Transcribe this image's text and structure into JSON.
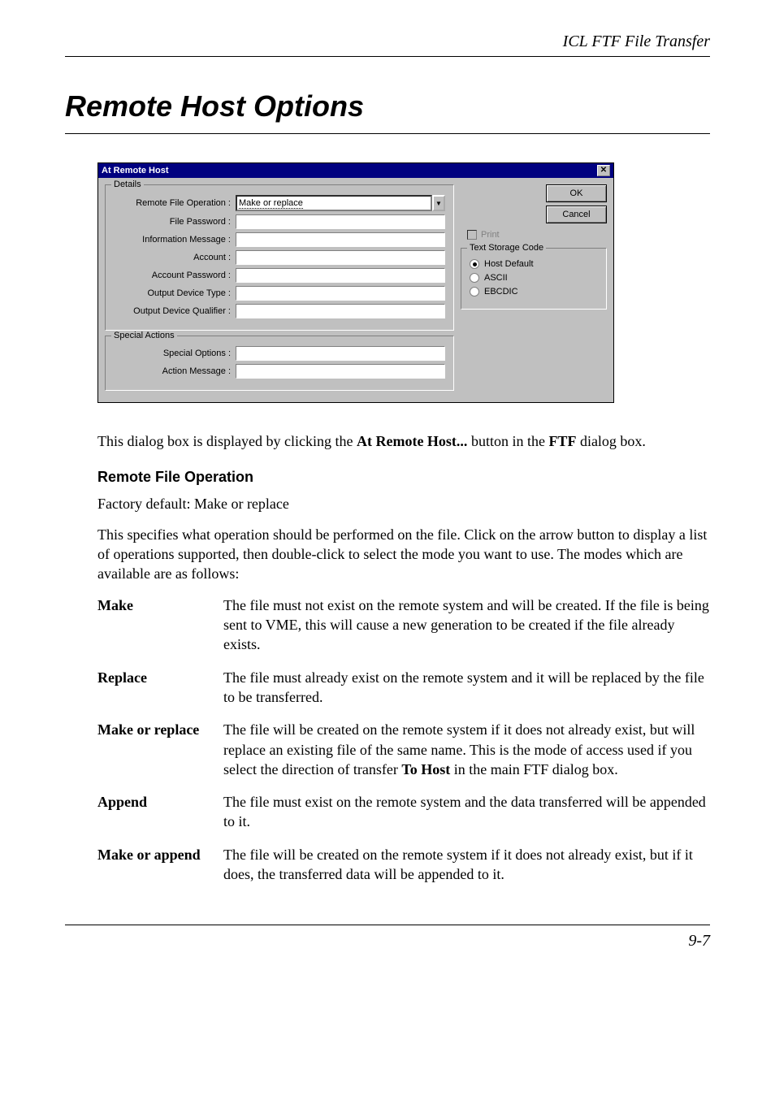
{
  "header": {
    "breadcrumb": "ICL FTF File Transfer"
  },
  "title": "Remote Host Options",
  "dialog": {
    "title": "At Remote Host",
    "details_legend": "Details",
    "special_legend": "Special Actions",
    "storage_legend": "Text Storage Code",
    "labels": {
      "remote_file_op": "Remote File Operation :",
      "file_password": "File Password :",
      "info_message": "Information Message :",
      "account": "Account :",
      "account_password": "Account Password :",
      "output_device_type": "Output Device Type :",
      "output_device_qualifier": "Output Device Qualifier :",
      "special_options": "Special Options :",
      "action_message": "Action Message :"
    },
    "combo_value": "Make or replace",
    "buttons": {
      "ok": "OK",
      "cancel": "Cancel"
    },
    "print_label": "Print",
    "radios": {
      "host_default": "Host Default",
      "ascii": "ASCII",
      "ebcdic": "EBCDIC"
    }
  },
  "intro_text_1": "This dialog box is displayed by clicking the ",
  "intro_bold_1": "At Remote Host...",
  "intro_text_2": " button in the ",
  "intro_bold_2": "FTF",
  "intro_text_3": " dialog box.",
  "section_heading": "Remote File Operation",
  "factory_default": "Factory default: Make or replace",
  "description": "This specifies what operation should be performed on the file. Click on the arrow button to display a list of operations supported, then double-click to select the mode you want to use. The modes which are available are as follows:",
  "modes": {
    "make": {
      "term": "Make",
      "desc": "The file must not exist on the remote system and will be created. If the file is being sent to VME, this will cause a new generation to be created if the file already exists."
    },
    "replace": {
      "term": "Replace",
      "desc": "The file must already exist on the remote system and it will be replaced by the file to be transferred."
    },
    "make_or_replace": {
      "term": "Make or replace",
      "desc_1": "The file will be created on the remote system if it does not already exist, but will replace an existing file of the same name. This is the mode of access used if you select the direction of transfer ",
      "desc_bold": "To Host",
      "desc_2": " in the main FTF dialog box."
    },
    "append": {
      "term": "Append",
      "desc": "The file must exist on the remote system and the data transferred will be appended to it."
    },
    "make_or_append": {
      "term": "Make or append",
      "desc": "The file will be created on the remote system if it does not already exist, but if it does, the transferred data will be appended to it."
    }
  },
  "page_number": "9-7"
}
